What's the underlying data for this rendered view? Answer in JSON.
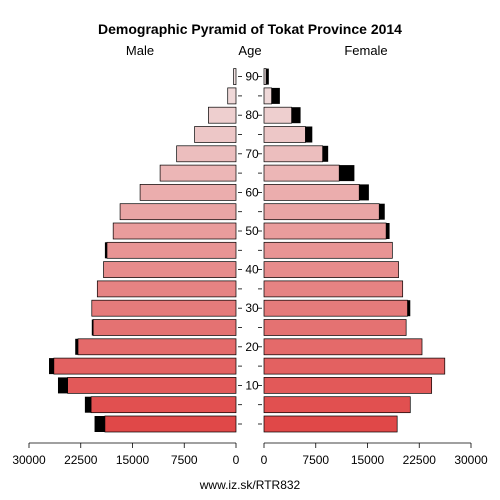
{
  "chart_data": {
    "type": "bar",
    "title": "Demographic Pyramid of Tokat Province 2014",
    "left_label": "Male",
    "center_label": "Age",
    "right_label": "Female",
    "footer": "www.iz.sk/RTR832",
    "age_ticks": [
      "10",
      "20",
      "30",
      "40",
      "50",
      "60",
      "70",
      "80",
      "90"
    ],
    "x_ticks_male": [
      "30000",
      "22500",
      "15000",
      "7500",
      "0"
    ],
    "x_ticks_female": [
      "0",
      "7500",
      "15000",
      "22500",
      "30000"
    ],
    "xlim": [
      0,
      30000
    ],
    "age_groups": [
      "0-4",
      "5-9",
      "10-14",
      "15-19",
      "20-24",
      "25-29",
      "30-34",
      "35-39",
      "40-44",
      "45-49",
      "50-54",
      "55-59",
      "60-64",
      "65-69",
      "70-74",
      "75-79",
      "80-84",
      "85-89",
      "90+"
    ],
    "male": [
      19000,
      21000,
      24400,
      26400,
      22900,
      20700,
      20900,
      20100,
      19200,
      18700,
      17800,
      16800,
      13900,
      11000,
      8600,
      6000,
      4000,
      1200,
      350
    ],
    "male_extra": [
      1500,
      900,
      1400,
      700,
      400,
      200,
      0,
      0,
      0,
      300,
      0,
      0,
      0,
      0,
      0,
      0,
      0,
      0,
      0
    ],
    "female": [
      19300,
      21200,
      24300,
      26200,
      22900,
      20600,
      20800,
      20100,
      19500,
      18600,
      17700,
      16700,
      13800,
      10900,
      8500,
      6000,
      4000,
      1100,
      300
    ],
    "female_extra": [
      0,
      0,
      0,
      0,
      0,
      0,
      400,
      0,
      0,
      0,
      500,
      800,
      1400,
      2200,
      800,
      1000,
      1300,
      1200,
      400
    ]
  }
}
